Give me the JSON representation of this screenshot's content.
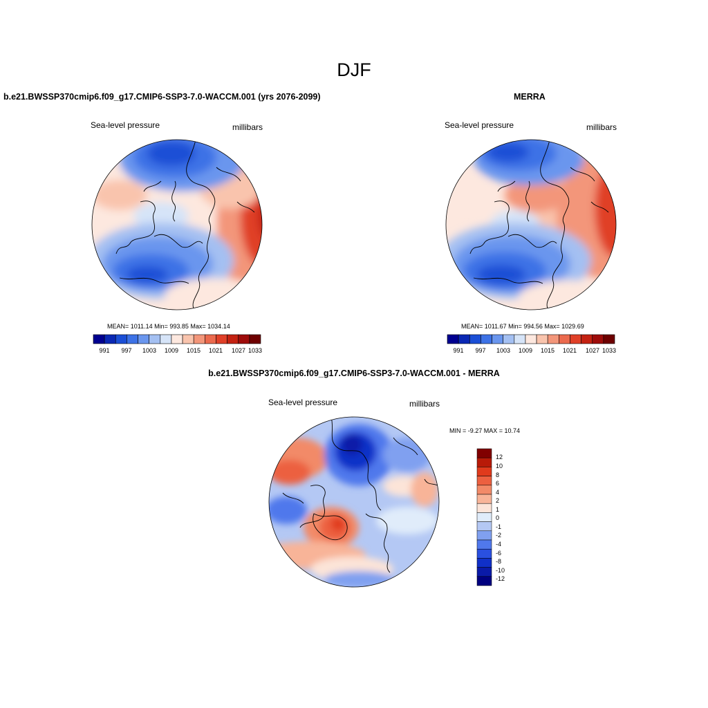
{
  "main_title": "DJF",
  "colors": {
    "abs_palette": [
      "#000090",
      "#0a28b4",
      "#1b4fd6",
      "#3d72e6",
      "#6a96ee",
      "#a4c0f2",
      "#d6e4f8",
      "#fde8df",
      "#f9c4ad",
      "#f3967a",
      "#eb6a4e",
      "#e04028",
      "#c42212",
      "#9e0c0a",
      "#6e0000"
    ],
    "diff_palette": [
      "#000080",
      "#0a1aa8",
      "#1030c8",
      "#2a50e0",
      "#5078ec",
      "#80a0f0",
      "#b4c8f4",
      "#e0ecfa",
      "#fce4d8",
      "#f8b498",
      "#f28a68",
      "#ec6040",
      "#e03a1c",
      "#b81a08",
      "#800000"
    ],
    "coastline": "#000000"
  },
  "panels": {
    "model": {
      "title": "b.e21.BWSSP370cmip6.f09_g17.CMIP6-SSP3-7.0-WACCM.001 (yrs 2076-2099)",
      "left_label": "Sea-level pressure",
      "right_label": "millibars",
      "stats": "MEAN= 1011.14  Min= 993.85  Max= 1034.14",
      "colorbar_labels": [
        "991",
        "997",
        "1003",
        "1009",
        "1015",
        "1021",
        "1027",
        "1033"
      ]
    },
    "obs": {
      "title": "MERRA",
      "left_label": "Sea-level pressure",
      "right_label": "millibars",
      "stats": "MEAN= 1011.67  Min= 994.56  Max= 1029.69",
      "colorbar_labels": [
        "991",
        "997",
        "1003",
        "1009",
        "1015",
        "1021",
        "1027",
        "1033"
      ]
    },
    "diff": {
      "title": "b.e21.BWSSP370cmip6.f09_g17.CMIP6-SSP3-7.0-WACCM.001 - MERRA",
      "left_label": "Sea-level pressure",
      "right_label": "millibars",
      "stats": "MIN =  -9.27 MAX =  10.74",
      "colorbar_labels": [
        "12",
        "10",
        "8",
        "6",
        "4",
        "2",
        "1",
        "0",
        "-1",
        "-2",
        "-4",
        "-6",
        "-8",
        "-10",
        "-12"
      ]
    }
  }
}
